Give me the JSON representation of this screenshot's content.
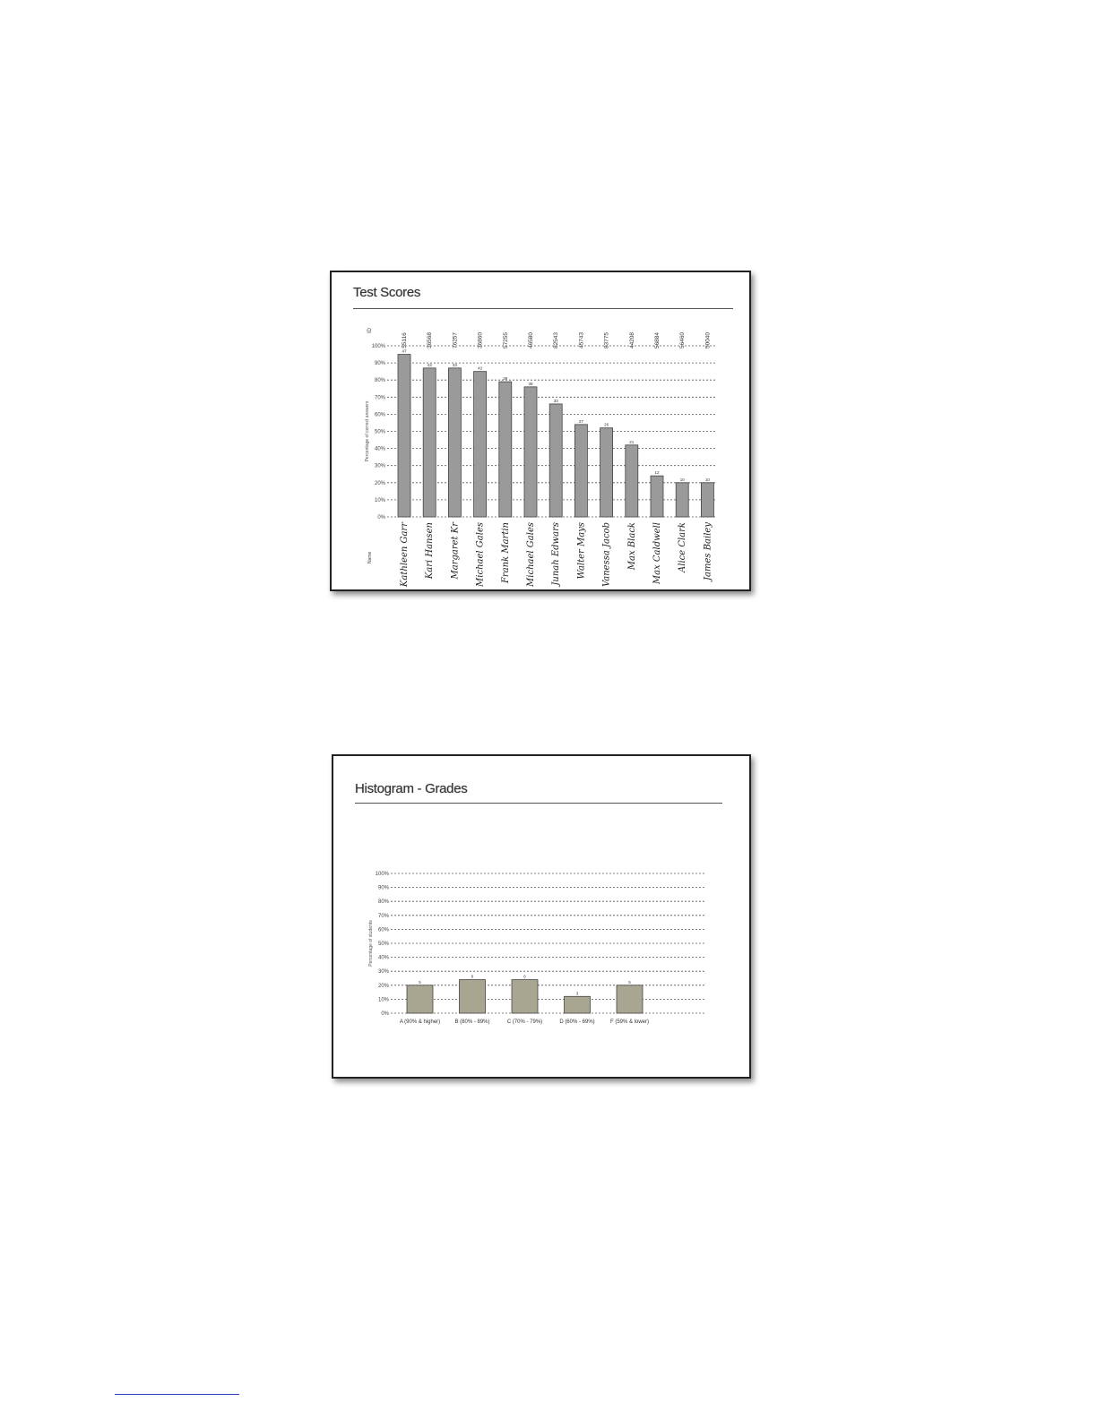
{
  "chart_data": [
    {
      "type": "bar",
      "title": "Test Scores",
      "ylabel": "Percentage of correct answers",
      "id_header": "ID",
      "name_header": "Name",
      "ylim": [
        0,
        100
      ],
      "yticks": [
        "0%",
        "10%",
        "20%",
        "30%",
        "40%",
        "50%",
        "60%",
        "70%",
        "80%",
        "90%",
        "100%"
      ],
      "grid": true,
      "ids": [
        "55116",
        "36568",
        "76257",
        "36860",
        "57255",
        "46580",
        "82543",
        "45743",
        "83775",
        "44208",
        "56884",
        "56460",
        "50040"
      ],
      "categories": [
        "Kathleen Garr",
        "Kari Hansen",
        "Margaret Kr",
        "Michael Gales",
        "Frank Martin",
        "Michael Gales",
        "Junah Edwars",
        "Walter Mays",
        "Vanessa Jacob",
        "Max Black",
        "Max Caldwell",
        "Alice Clark",
        "James Bailey"
      ],
      "values": [
        95,
        87,
        87,
        85,
        79,
        76,
        66,
        54,
        52,
        42,
        24,
        20,
        20
      ],
      "data_labels": [
        "47",
        "43",
        "43",
        "42",
        "39",
        "38",
        "33",
        "27",
        "26",
        "21",
        "12",
        "10",
        "10"
      ],
      "bar_color": "#9a9a9a"
    },
    {
      "type": "bar",
      "title": "Histogram - Grades",
      "ylabel": "Percentage of students",
      "ylim": [
        0,
        100
      ],
      "yticks": [
        "0%",
        "10%",
        "20%",
        "30%",
        "40%",
        "50%",
        "60%",
        "70%",
        "80%",
        "90%",
        "100%"
      ],
      "grid": true,
      "categories": [
        "A (90% & higher)",
        "B (80% - 89%)",
        "C (70% - 79%)",
        "D (60% - 69%)",
        "F (59% & lower)"
      ],
      "values": [
        20,
        24,
        24,
        12,
        20
      ],
      "data_labels": [
        "5",
        "6",
        "6",
        "3",
        "5"
      ],
      "bar_color": "#a8a690"
    }
  ]
}
